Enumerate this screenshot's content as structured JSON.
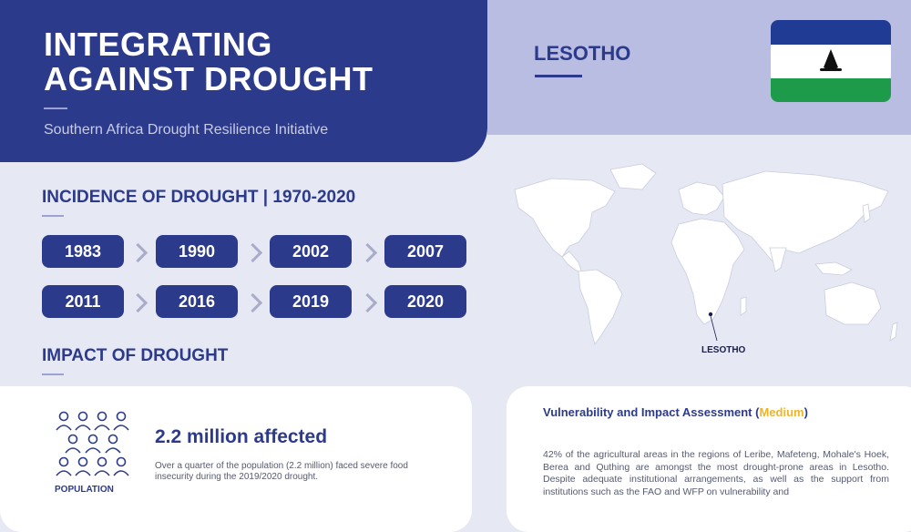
{
  "header": {
    "title_line1": "INTEGRATING",
    "title_line2": "AGAINST DROUGHT",
    "subtitle": "Southern Africa Drought Resilience Initiative"
  },
  "country": {
    "name": "LESOTHO",
    "flag_colors": [
      "#1f3b93",
      "#ffffff",
      "#1d9a4a"
    ],
    "flag_icon": "mokorotlo-hat-icon"
  },
  "incidence": {
    "heading": "INCIDENCE OF DROUGHT | 1970-2020",
    "years": [
      "1983",
      "1990",
      "2002",
      "2007",
      "2011",
      "2016",
      "2019",
      "2020"
    ]
  },
  "impact": {
    "heading": "IMPACT OF DROUGHT"
  },
  "map": {
    "label": "LESOTHO",
    "icon": "world-map-icon"
  },
  "population": {
    "icon": "people-group-icon",
    "label": "POPULATION",
    "headline": "2.2 million affected",
    "description": "Over a quarter of the population (2.2 million) faced severe food insecurity during the 2019/2020 drought."
  },
  "vulnerability": {
    "title_prefix": "Vulnerability and Impact Assessment (",
    "level": "Medium",
    "title_suffix": ")",
    "text": "42% of the agricultural areas in the regions of Leribe, Mafeteng, Mohale's Hoek, Berea and Quthing are amongst the most drought-prone areas in Lesotho. Despite adequate institutional arrangements, as well as the support from institutions such as the FAO and WFP on vulnerability and"
  },
  "colors": {
    "primary": "#2c3a8c",
    "accent": "#f0b429",
    "panel": "#b9bde2",
    "background": "#e6e8f4"
  }
}
